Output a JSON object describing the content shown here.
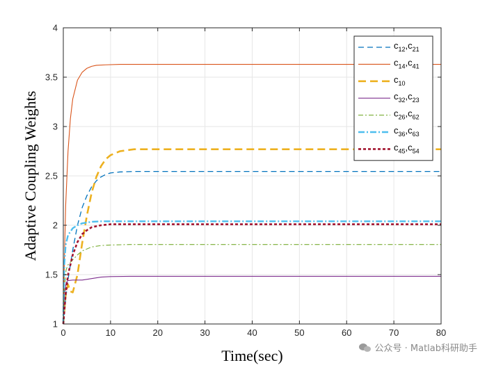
{
  "chart_data": {
    "type": "line",
    "xlabel": "Time(sec)",
    "ylabel": "Adaptive Coupling Weights",
    "xlim": [
      0,
      80
    ],
    "ylim": [
      1,
      4
    ],
    "xticks": [
      "0",
      "10",
      "20",
      "30",
      "40",
      "50",
      "60",
      "70",
      "80"
    ],
    "yticks": [
      "1",
      "1.5",
      "2",
      "2.5",
      "3",
      "3.5",
      "4"
    ],
    "grid": true,
    "legend_position": "top-right",
    "series": [
      {
        "name": "c12,c21",
        "label_main": [
          "c",
          ",c",
          ""
        ],
        "label_sub": [
          "12",
          "21"
        ],
        "color": "#0072BD",
        "dash": "8,5",
        "width": 1.3,
        "points": [
          [
            0,
            1.0
          ],
          [
            0.5,
            1.25
          ],
          [
            1,
            1.45
          ],
          [
            2,
            1.75
          ],
          [
            3,
            2.0
          ],
          [
            4,
            2.18
          ],
          [
            5,
            2.3
          ],
          [
            6,
            2.39
          ],
          [
            7,
            2.45
          ],
          [
            8,
            2.49
          ],
          [
            9,
            2.515
          ],
          [
            10,
            2.53
          ],
          [
            12,
            2.54
          ],
          [
            15,
            2.545
          ],
          [
            80,
            2.545
          ]
        ]
      },
      {
        "name": "c14,c41",
        "label_main": [
          "c",
          ",c",
          ""
        ],
        "label_sub": [
          "14",
          "41"
        ],
        "color": "#D95319",
        "dash": "",
        "width": 1.1,
        "points": [
          [
            0,
            1.0
          ],
          [
            0.2,
            1.6
          ],
          [
            0.5,
            2.2
          ],
          [
            1,
            2.75
          ],
          [
            1.5,
            3.08
          ],
          [
            2,
            3.28
          ],
          [
            3,
            3.47
          ],
          [
            4,
            3.55
          ],
          [
            5,
            3.59
          ],
          [
            6,
            3.61
          ],
          [
            7,
            3.62
          ],
          [
            9,
            3.625
          ],
          [
            12,
            3.63
          ],
          [
            80,
            3.63
          ]
        ]
      },
      {
        "name": "c10",
        "label_main": [
          "c",
          ""
        ],
        "label_sub": [
          "10"
        ],
        "color": "#EDB120",
        "dash": "11,6",
        "width": 2.6,
        "points": [
          [
            0,
            1.0
          ],
          [
            0.5,
            1.3
          ],
          [
            1,
            1.4
          ],
          [
            1.5,
            1.33
          ],
          [
            2,
            1.32
          ],
          [
            3,
            1.5
          ],
          [
            4,
            1.82
          ],
          [
            5,
            2.1
          ],
          [
            6,
            2.33
          ],
          [
            7,
            2.49
          ],
          [
            8,
            2.6
          ],
          [
            9,
            2.67
          ],
          [
            10,
            2.71
          ],
          [
            12,
            2.75
          ],
          [
            15,
            2.77
          ],
          [
            80,
            2.77
          ]
        ]
      },
      {
        "name": "c32,c23",
        "label_main": [
          "c",
          ",c",
          ""
        ],
        "label_sub": [
          "32",
          "23"
        ],
        "color": "#7E2F8E",
        "dash": "",
        "width": 1.1,
        "points": [
          [
            0,
            1.0
          ],
          [
            0.3,
            1.3
          ],
          [
            0.6,
            1.42
          ],
          [
            1,
            1.44
          ],
          [
            2,
            1.445
          ],
          [
            4,
            1.445
          ],
          [
            6,
            1.46
          ],
          [
            8,
            1.475
          ],
          [
            10,
            1.48
          ],
          [
            14,
            1.483
          ],
          [
            30,
            1.483
          ],
          [
            80,
            1.483
          ]
        ]
      },
      {
        "name": "c26,c62",
        "label_main": [
          "c",
          ",c",
          ""
        ],
        "label_sub": [
          "26",
          "62"
        ],
        "color": "#77AC30",
        "dash": "7,3,2,3",
        "width": 1.1,
        "points": [
          [
            0,
            1.0
          ],
          [
            0.3,
            1.4
          ],
          [
            0.6,
            1.55
          ],
          [
            1,
            1.6
          ],
          [
            2,
            1.65
          ],
          [
            3,
            1.7
          ],
          [
            4,
            1.74
          ],
          [
            6,
            1.78
          ],
          [
            8,
            1.795
          ],
          [
            10,
            1.8
          ],
          [
            14,
            1.805
          ],
          [
            80,
            1.805
          ]
        ]
      },
      {
        "name": "c36,c63",
        "label_main": [
          "c",
          ",c",
          ""
        ],
        "label_sub": [
          "36",
          "63"
        ],
        "color": "#4DBEEE",
        "dash": "9,3,2,3",
        "width": 2.4,
        "points": [
          [
            0,
            1.0
          ],
          [
            0.2,
            1.6
          ],
          [
            0.5,
            1.8
          ],
          [
            1,
            1.9
          ],
          [
            2,
            1.97
          ],
          [
            3,
            2.0
          ],
          [
            4,
            2.02
          ],
          [
            6,
            2.035
          ],
          [
            8,
            2.04
          ],
          [
            80,
            2.04
          ]
        ]
      },
      {
        "name": "c45,c54",
        "label_main": [
          "c",
          ",c",
          ""
        ],
        "label_sub": [
          "45",
          "54"
        ],
        "color": "#A2142F",
        "dash": "4,3",
        "width": 2.6,
        "points": [
          [
            0,
            1.0
          ],
          [
            0.5,
            1.3
          ],
          [
            1,
            1.5
          ],
          [
            2,
            1.7
          ],
          [
            3,
            1.83
          ],
          [
            4,
            1.91
          ],
          [
            5,
            1.95
          ],
          [
            6,
            1.98
          ],
          [
            8,
            2.0
          ],
          [
            10,
            2.01
          ],
          [
            80,
            2.01
          ]
        ]
      }
    ]
  },
  "watermark": {
    "text": "公众号 · Matlab科研助手"
  }
}
